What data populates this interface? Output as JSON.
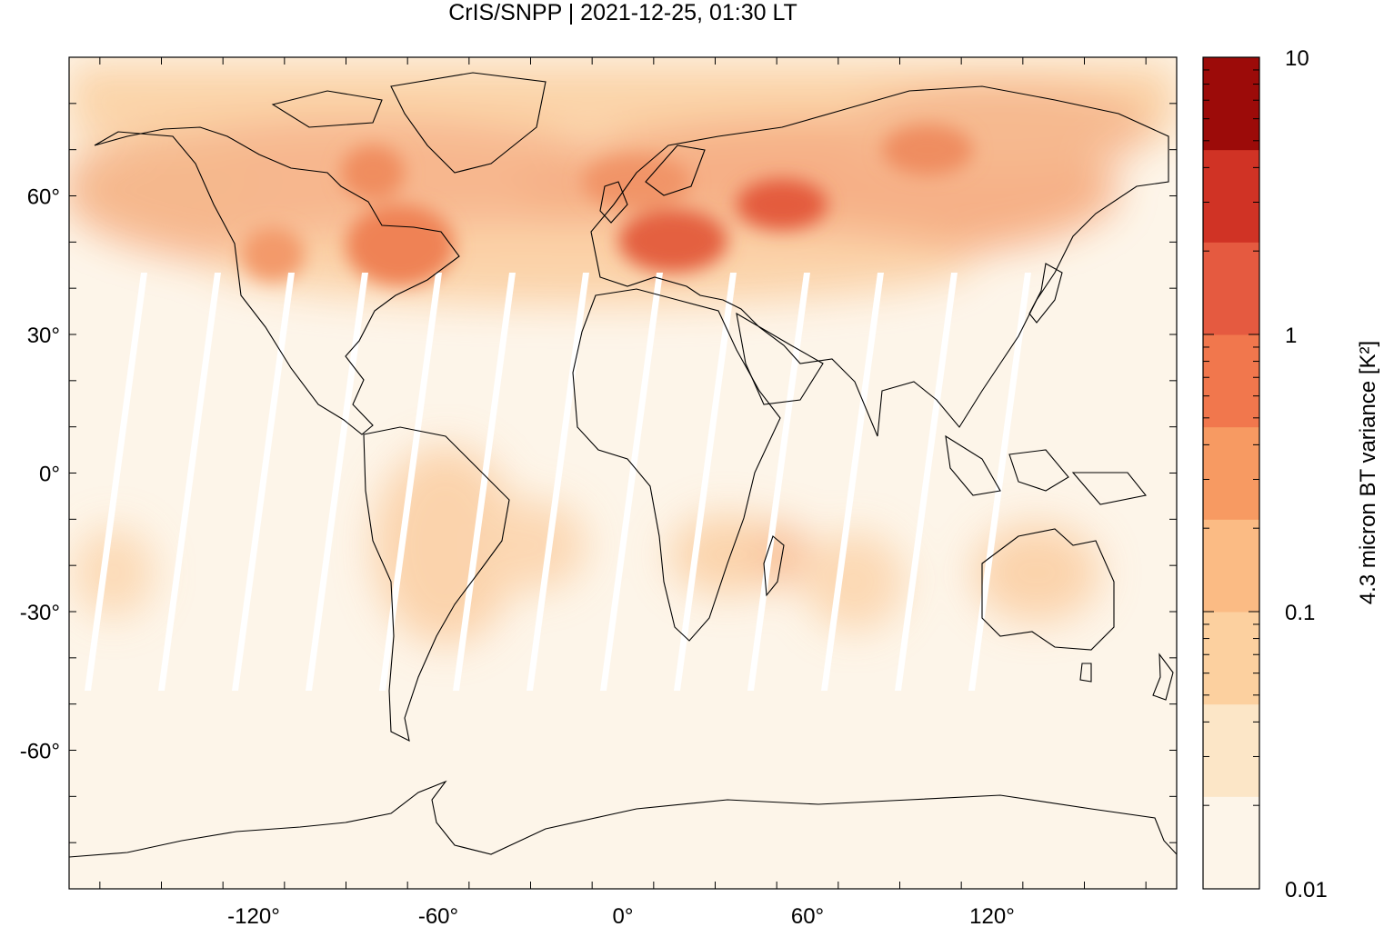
{
  "title": "CrIS/SNPP | 2021-12-25, 01:30 LT",
  "map": {
    "projection": "equirectangular",
    "lon_range": [
      -180,
      180
    ],
    "lat_range": [
      -90,
      90
    ],
    "xticks": [
      {
        "value": -120,
        "label": "-120°"
      },
      {
        "value": -60,
        "label": "-60°"
      },
      {
        "value": 0,
        "label": "0°"
      },
      {
        "value": 60,
        "label": "60°"
      },
      {
        "value": 120,
        "label": "120°"
      }
    ],
    "yticks": [
      {
        "value": 60,
        "label": "60°"
      },
      {
        "value": 30,
        "label": "30°"
      },
      {
        "value": 0,
        "label": "0°"
      },
      {
        "value": -30,
        "label": "-30°"
      },
      {
        "value": -60,
        "label": "-60°"
      }
    ],
    "background_color": "#fdf5e9",
    "coastline_color": "#000000"
  },
  "colorbar": {
    "label": "4.3 micron BT variance [K²]",
    "scale": "log",
    "range": [
      0.01,
      10
    ],
    "ticks": [
      {
        "value": 10,
        "label": "10"
      },
      {
        "value": 1,
        "label": "1"
      },
      {
        "value": 0.1,
        "label": "0.1"
      },
      {
        "value": 0.01,
        "label": "0.01"
      }
    ],
    "colors": [
      "#fdf5e9",
      "#fce6c7",
      "#fcd09f",
      "#fbbb84",
      "#f79a62",
      "#f1774d",
      "#e55a40",
      "#d03325",
      "#9c0b09"
    ]
  }
}
